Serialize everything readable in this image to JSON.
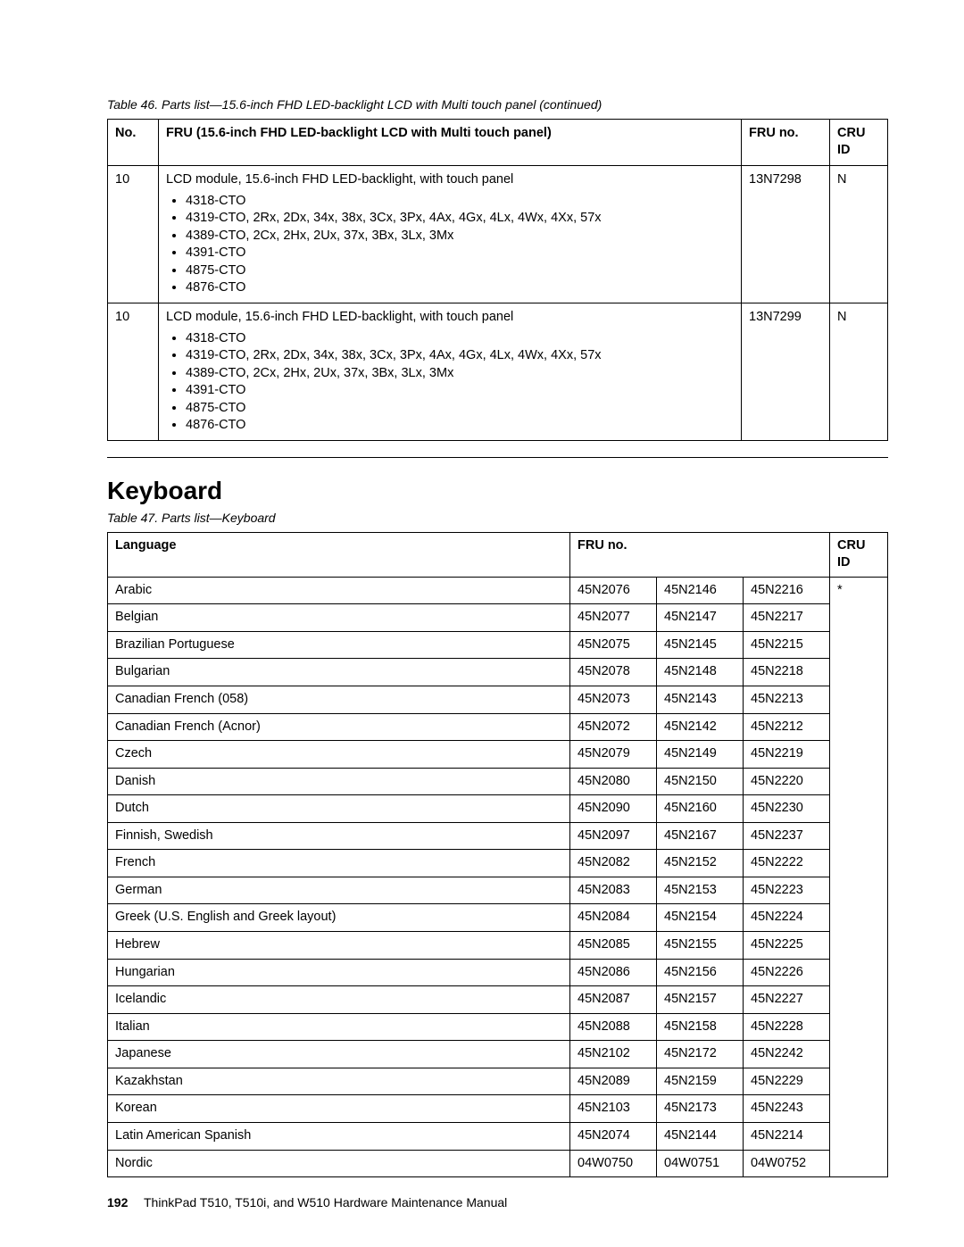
{
  "table46": {
    "caption": "Table 46. Parts list—15.6-inch FHD LED-backlight LCD with Multi touch panel (continued)",
    "head": {
      "no": "No.",
      "desc": "FRU (15.6-inch FHD LED-backlight LCD with Multi touch panel)",
      "fru_no": "FRU no.",
      "cru": "CRU ID"
    },
    "rows": [
      {
        "no": "10",
        "title": "LCD module, 15.6-inch FHD LED-backlight, with touch panel",
        "bullets": [
          "4318-CTO",
          "4319-CTO, 2Rx, 2Dx, 34x, 38x, 3Cx, 3Px, 4Ax, 4Gx, 4Lx, 4Wx, 4Xx, 57x",
          "4389-CTO, 2Cx, 2Hx, 2Ux, 37x, 3Bx, 3Lx, 3Mx",
          "4391-CTO",
          "4875-CTO",
          "4876-CTO"
        ],
        "fru_no": "13N7298",
        "cru": "N"
      },
      {
        "no": "10",
        "title": "LCD module, 15.6-inch FHD LED-backlight, with touch panel",
        "bullets": [
          "4318-CTO",
          "4319-CTO, 2Rx, 2Dx, 34x, 38x, 3Cx, 3Px, 4Ax, 4Gx, 4Lx, 4Wx, 4Xx, 57x",
          "4389-CTO, 2Cx, 2Hx, 2Ux, 37x, 3Bx, 3Lx, 3Mx",
          "4391-CTO",
          "4875-CTO",
          "4876-CTO"
        ],
        "fru_no": "13N7299",
        "cru": "N"
      }
    ]
  },
  "section_heading": "Keyboard",
  "table47": {
    "caption": "Table 47. Parts list—Keyboard",
    "head": {
      "lang": "Language",
      "fru_no": "FRU no.",
      "cru": "CRU ID"
    },
    "cru": "*",
    "rows": [
      {
        "lang": "Arabic",
        "p": [
          "45N2076",
          "45N2146",
          "45N2216"
        ]
      },
      {
        "lang": "Belgian",
        "p": [
          "45N2077",
          "45N2147",
          "45N2217"
        ]
      },
      {
        "lang": "Brazilian Portuguese",
        "p": [
          "45N2075",
          "45N2145",
          "45N2215"
        ]
      },
      {
        "lang": "Bulgarian",
        "p": [
          "45N2078",
          "45N2148",
          "45N2218"
        ]
      },
      {
        "lang": "Canadian French (058)",
        "p": [
          "45N2073",
          "45N2143",
          "45N2213"
        ]
      },
      {
        "lang": "Canadian French (Acnor)",
        "p": [
          "45N2072",
          "45N2142",
          "45N2212"
        ]
      },
      {
        "lang": "Czech",
        "p": [
          "45N2079",
          "45N2149",
          "45N2219"
        ]
      },
      {
        "lang": "Danish",
        "p": [
          "45N2080",
          "45N2150",
          "45N2220"
        ]
      },
      {
        "lang": "Dutch",
        "p": [
          "45N2090",
          "45N2160",
          "45N2230"
        ]
      },
      {
        "lang": "Finnish, Swedish",
        "p": [
          "45N2097",
          "45N2167",
          "45N2237"
        ]
      },
      {
        "lang": "French",
        "p": [
          "45N2082",
          "45N2152",
          "45N2222"
        ]
      },
      {
        "lang": "German",
        "p": [
          "45N2083",
          "45N2153",
          "45N2223"
        ]
      },
      {
        "lang": "Greek (U.S. English and Greek layout)",
        "p": [
          "45N2084",
          "45N2154",
          "45N2224"
        ]
      },
      {
        "lang": "Hebrew",
        "p": [
          "45N2085",
          "45N2155",
          "45N2225"
        ]
      },
      {
        "lang": "Hungarian",
        "p": [
          "45N2086",
          "45N2156",
          "45N2226"
        ]
      },
      {
        "lang": "Icelandic",
        "p": [
          "45N2087",
          "45N2157",
          "45N2227"
        ]
      },
      {
        "lang": "Italian",
        "p": [
          "45N2088",
          "45N2158",
          "45N2228"
        ]
      },
      {
        "lang": "Japanese",
        "p": [
          "45N2102",
          "45N2172",
          "45N2242"
        ]
      },
      {
        "lang": "Kazakhstan",
        "p": [
          "45N2089",
          "45N2159",
          "45N2229"
        ]
      },
      {
        "lang": "Korean",
        "p": [
          "45N2103",
          "45N2173",
          "45N2243"
        ]
      },
      {
        "lang": "Latin American Spanish",
        "p": [
          "45N2074",
          "45N2144",
          "45N2214"
        ]
      },
      {
        "lang": "Nordic",
        "p": [
          "04W0750",
          "04W0751",
          "04W0752"
        ]
      }
    ]
  },
  "footer": {
    "page": "192",
    "title": "ThinkPad T510, T510i, and W510 Hardware Maintenance Manual"
  }
}
